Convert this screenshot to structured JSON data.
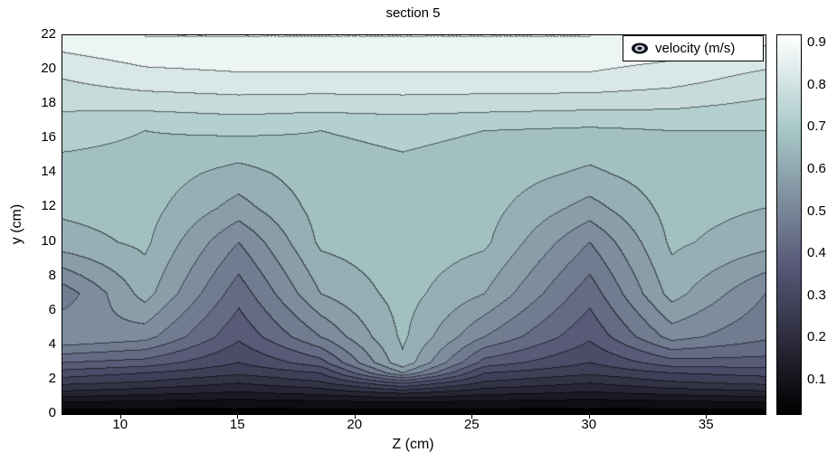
{
  "chart_data": {
    "type": "contour",
    "title": "section 5",
    "xlabel": "Z (cm)",
    "ylabel": "y (cm)",
    "legend": {
      "label": "velocity (m/s)"
    },
    "x_range": [
      7.5,
      37.5
    ],
    "y_range": [
      0,
      22
    ],
    "x_ticks": [
      "10",
      "15",
      "20",
      "25",
      "30",
      "35"
    ],
    "x_tick_values": [
      10,
      15,
      20,
      25,
      30,
      35
    ],
    "y_ticks": [
      "0",
      "2",
      "4",
      "6",
      "8",
      "10",
      "12",
      "14",
      "16",
      "18",
      "20",
      "22"
    ],
    "y_tick_values": [
      0,
      2,
      4,
      6,
      8,
      10,
      12,
      14,
      16,
      18,
      20,
      22
    ],
    "colorbar": {
      "tick_labels": [
        "0.1",
        "0.2",
        "0.3",
        "0.4",
        "0.5",
        "0.6",
        "0.7",
        "0.8",
        "0.9"
      ],
      "tick_values": [
        0.1,
        0.2,
        0.3,
        0.4,
        0.5,
        0.6,
        0.7,
        0.8,
        0.9
      ],
      "range": [
        0.02,
        0.92
      ],
      "colormap": "bone"
    },
    "levels": {
      "start": 0.05,
      "step": 0.05,
      "end": 0.9
    },
    "grid": {
      "z": [
        7.5,
        11,
        15,
        18.5,
        22,
        25.5,
        30,
        33.5,
        37.5
      ],
      "y": [
        0,
        0.7,
        1.2,
        1.8,
        2.4,
        3,
        4.5,
        7,
        10,
        12,
        14,
        16.5,
        19.5,
        22
      ],
      "velocity": [
        [
          0.02,
          0.02,
          0.02,
          0.02,
          0.02,
          0.02,
          0.02,
          0.02,
          0.02
        ],
        [
          0.1,
          0.09,
          0.08,
          0.09,
          0.1,
          0.09,
          0.08,
          0.09,
          0.1
        ],
        [
          0.18,
          0.16,
          0.14,
          0.16,
          0.2,
          0.16,
          0.14,
          0.16,
          0.18
        ],
        [
          0.26,
          0.24,
          0.2,
          0.24,
          0.35,
          0.24,
          0.2,
          0.24,
          0.26
        ],
        [
          0.33,
          0.3,
          0.26,
          0.3,
          0.55,
          0.3,
          0.26,
          0.3,
          0.32
        ],
        [
          0.4,
          0.38,
          0.3,
          0.38,
          0.64,
          0.38,
          0.3,
          0.38,
          0.38
        ],
        [
          0.55,
          0.52,
          0.36,
          0.5,
          0.66,
          0.5,
          0.36,
          0.52,
          0.46
        ],
        [
          0.47,
          0.62,
          0.42,
          0.6,
          0.67,
          0.6,
          0.42,
          0.62,
          0.5
        ],
        [
          0.63,
          0.66,
          0.5,
          0.66,
          0.68,
          0.66,
          0.5,
          0.66,
          0.62
        ],
        [
          0.66,
          0.67,
          0.58,
          0.67,
          0.68,
          0.67,
          0.58,
          0.67,
          0.65
        ],
        [
          0.68,
          0.68,
          0.63,
          0.68,
          0.69,
          0.68,
          0.64,
          0.68,
          0.67
        ],
        [
          0.72,
          0.7,
          0.71,
          0.7,
          0.71,
          0.7,
          0.69,
          0.7,
          0.7
        ],
        [
          0.8,
          0.83,
          0.84,
          0.84,
          0.84,
          0.84,
          0.84,
          0.82,
          0.78
        ],
        [
          0.88,
          0.9,
          0.9,
          0.9,
          0.9,
          0.9,
          0.9,
          0.89,
          0.87
        ]
      ]
    }
  }
}
